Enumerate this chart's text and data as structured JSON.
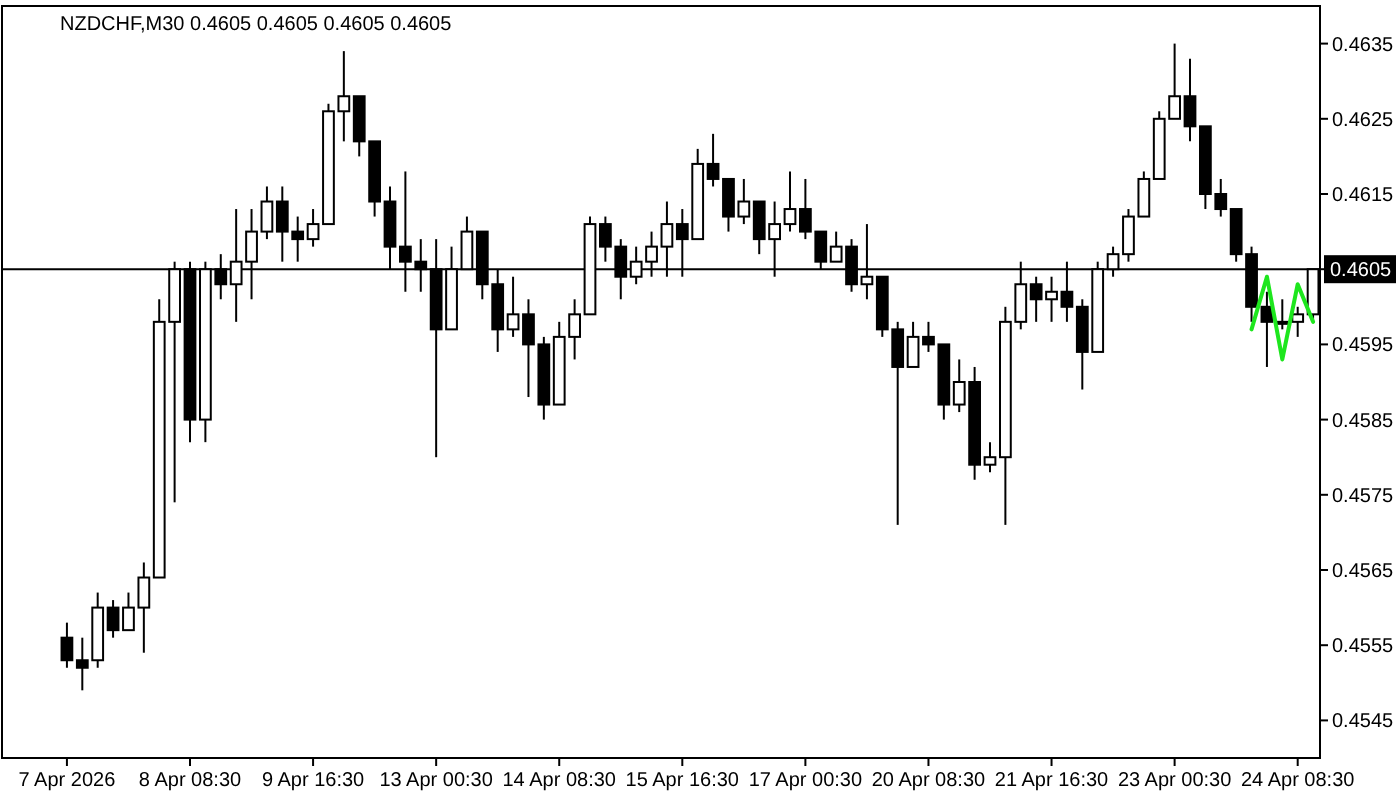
{
  "chart_data": {
    "type": "candlestick",
    "title": "NZDCHF,M30  0.4605 0.4605 0.4605 0.4605",
    "categories": [
      "7 Apr 2026",
      null,
      null,
      null,
      null,
      null,
      null,
      null,
      "8 Apr 08:30",
      null,
      null,
      null,
      null,
      null,
      null,
      null,
      "9 Apr 16:30",
      null,
      null,
      null,
      null,
      null,
      null,
      null,
      "13 Apr 00:30",
      null,
      null,
      null,
      null,
      null,
      null,
      null,
      "14 Apr 08:30",
      null,
      null,
      null,
      null,
      null,
      null,
      null,
      "15 Apr 16:30",
      null,
      null,
      null,
      null,
      null,
      null,
      null,
      "17 Apr 00:30",
      null,
      null,
      null,
      null,
      null,
      null,
      null,
      "20 Apr 08:30",
      null,
      null,
      null,
      null,
      null,
      null,
      null,
      "21 Apr 16:30",
      null,
      null,
      null,
      null,
      null,
      null,
      null,
      "23 Apr 00:30",
      null,
      null,
      null,
      null,
      null,
      null,
      null,
      "24 Apr 08:30",
      null
    ],
    "series": [
      {
        "color": "#000000",
        "ohlc": [
          [
            0.4556,
            0.4558,
            0.4552,
            0.4553
          ],
          [
            0.4553,
            0.4556,
            0.4549,
            0.4552
          ],
          [
            0.4553,
            0.4562,
            0.4552,
            0.456
          ],
          [
            0.456,
            0.4561,
            0.4556,
            0.4557
          ],
          [
            0.4557,
            0.4562,
            0.4557,
            0.456
          ],
          [
            0.456,
            0.4566,
            0.4554,
            0.4564
          ],
          [
            0.4564,
            0.4601,
            0.4564,
            0.4598
          ],
          [
            0.4598,
            0.4606,
            0.4574,
            0.4605
          ],
          [
            0.4605,
            0.4606,
            0.4582,
            0.4585
          ],
          [
            0.4585,
            0.4606,
            0.4582,
            0.4605
          ],
          [
            0.4605,
            0.4607,
            0.4601,
            0.4603
          ],
          [
            0.4603,
            0.4613,
            0.4598,
            0.4606
          ],
          [
            0.4606,
            0.4613,
            0.4601,
            0.461
          ],
          [
            0.461,
            0.4616,
            0.4609,
            0.4614
          ],
          [
            0.4614,
            0.4616,
            0.4606,
            0.461
          ],
          [
            0.461,
            0.4612,
            0.4606,
            0.4609
          ],
          [
            0.4609,
            0.4613,
            0.4608,
            0.4611
          ],
          [
            0.4611,
            0.4627,
            0.4611,
            0.4626
          ],
          [
            0.4626,
            0.4634,
            0.4622,
            0.4628
          ],
          [
            0.4628,
            0.4628,
            0.462,
            0.4622
          ],
          [
            0.4622,
            0.4622,
            0.4612,
            0.4614
          ],
          [
            0.4614,
            0.4616,
            0.4605,
            0.4608
          ],
          [
            0.4608,
            0.4618,
            0.4602,
            0.4606
          ],
          [
            0.4606,
            0.4609,
            0.4602,
            0.4605
          ],
          [
            0.4605,
            0.4609,
            0.458,
            0.4597
          ],
          [
            0.4597,
            0.4608,
            0.4597,
            0.4605
          ],
          [
            0.4605,
            0.4612,
            0.4605,
            0.461
          ],
          [
            0.461,
            0.461,
            0.4601,
            0.4603
          ],
          [
            0.4603,
            0.4605,
            0.4594,
            0.4597
          ],
          [
            0.4597,
            0.4604,
            0.4596,
            0.4599
          ],
          [
            0.4599,
            0.4601,
            0.4588,
            0.4595
          ],
          [
            0.4595,
            0.4596,
            0.4585,
            0.4587
          ],
          [
            0.4587,
            0.4598,
            0.4587,
            0.4596
          ],
          [
            0.4596,
            0.4601,
            0.4593,
            0.4599
          ],
          [
            0.4599,
            0.4612,
            0.4599,
            0.4611
          ],
          [
            0.4611,
            0.4612,
            0.4606,
            0.4608
          ],
          [
            0.4608,
            0.4609,
            0.4601,
            0.4604
          ],
          [
            0.4604,
            0.4608,
            0.4603,
            0.4606
          ],
          [
            0.4606,
            0.461,
            0.4604,
            0.4608
          ],
          [
            0.4608,
            0.4614,
            0.4604,
            0.4611
          ],
          [
            0.4611,
            0.4613,
            0.4604,
            0.4609
          ],
          [
            0.4609,
            0.4621,
            0.4609,
            0.4619
          ],
          [
            0.4619,
            0.4623,
            0.4616,
            0.4617
          ],
          [
            0.4617,
            0.4617,
            0.461,
            0.4612
          ],
          [
            0.4612,
            0.4617,
            0.4611,
            0.4614
          ],
          [
            0.4614,
            0.4614,
            0.4607,
            0.4609
          ],
          [
            0.4609,
            0.4614,
            0.4604,
            0.4611
          ],
          [
            0.4611,
            0.4618,
            0.461,
            0.4613
          ],
          [
            0.4613,
            0.4617,
            0.4609,
            0.461
          ],
          [
            0.461,
            0.461,
            0.4605,
            0.4606
          ],
          [
            0.4606,
            0.461,
            0.4606,
            0.4608
          ],
          [
            0.4608,
            0.4609,
            0.4602,
            0.4603
          ],
          [
            0.4603,
            0.4611,
            0.4601,
            0.4604
          ],
          [
            0.4604,
            0.4604,
            0.4596,
            0.4597
          ],
          [
            0.4597,
            0.4598,
            0.4571,
            0.4592
          ],
          [
            0.4592,
            0.4598,
            0.4592,
            0.4596
          ],
          [
            0.4596,
            0.4598,
            0.4594,
            0.4595
          ],
          [
            0.4595,
            0.4595,
            0.4585,
            0.4587
          ],
          [
            0.4587,
            0.4593,
            0.4586,
            0.459
          ],
          [
            0.459,
            0.4592,
            0.4577,
            0.4579
          ],
          [
            0.4579,
            0.4582,
            0.4578,
            0.458
          ],
          [
            0.458,
            0.46,
            0.4571,
            0.4598
          ],
          [
            0.4598,
            0.4606,
            0.4597,
            0.4603
          ],
          [
            0.4603,
            0.4604,
            0.4598,
            0.4601
          ],
          [
            0.4601,
            0.4604,
            0.4598,
            0.4602
          ],
          [
            0.4602,
            0.4606,
            0.4598,
            0.46
          ],
          [
            0.46,
            0.4601,
            0.4589,
            0.4594
          ],
          [
            0.4594,
            0.4606,
            0.4594,
            0.4605
          ],
          [
            0.4605,
            0.4608,
            0.4604,
            0.4607
          ],
          [
            0.4607,
            0.4613,
            0.4606,
            0.4612
          ],
          [
            0.4612,
            0.4618,
            0.4612,
            0.4617
          ],
          [
            0.4617,
            0.4626,
            0.4617,
            0.4625
          ],
          [
            0.4625,
            0.4635,
            0.4625,
            0.4628
          ],
          [
            0.4628,
            0.4633,
            0.4622,
            0.4624
          ],
          [
            0.4624,
            0.4624,
            0.4613,
            0.4615
          ],
          [
            0.4615,
            0.4617,
            0.4612,
            0.4613
          ],
          [
            0.4613,
            0.4613,
            0.4606,
            0.4607
          ],
          [
            0.4607,
            0.4608,
            0.4598,
            0.46
          ],
          [
            0.46,
            0.4602,
            0.4592,
            0.4598
          ],
          [
            0.4598,
            0.4601,
            0.4597,
            0.4598
          ],
          [
            0.4598,
            0.46,
            0.4596,
            0.4599
          ],
          [
            0.4599,
            0.4605,
            0.4598,
            0.4605
          ]
        ]
      },
      {
        "type": "line",
        "color": "#1ee61e",
        "values": [
          null,
          null,
          null,
          null,
          null,
          null,
          null,
          null,
          null,
          null,
          null,
          null,
          null,
          null,
          null,
          null,
          null,
          null,
          null,
          null,
          null,
          null,
          null,
          null,
          null,
          null,
          null,
          null,
          null,
          null,
          null,
          null,
          null,
          null,
          null,
          null,
          null,
          null,
          null,
          null,
          null,
          null,
          null,
          null,
          null,
          null,
          null,
          null,
          null,
          null,
          null,
          null,
          null,
          null,
          null,
          null,
          null,
          null,
          null,
          null,
          null,
          null,
          null,
          null,
          null,
          null,
          null,
          null,
          null,
          null,
          null,
          null,
          null,
          null,
          null,
          null,
          null,
          0.4597,
          0.4604,
          0.4593,
          0.4603,
          0.4598
        ]
      }
    ],
    "ylim": [
      0.454,
      0.464
    ],
    "yticks": [
      0.4545,
      0.4555,
      0.4565,
      0.4575,
      0.4585,
      0.4595,
      0.4605,
      0.4615,
      0.4625,
      0.4635
    ],
    "ref_lines": [
      {
        "axis": "y",
        "value": 0.4605,
        "label": "0.4605",
        "color": "#000000"
      }
    ]
  }
}
